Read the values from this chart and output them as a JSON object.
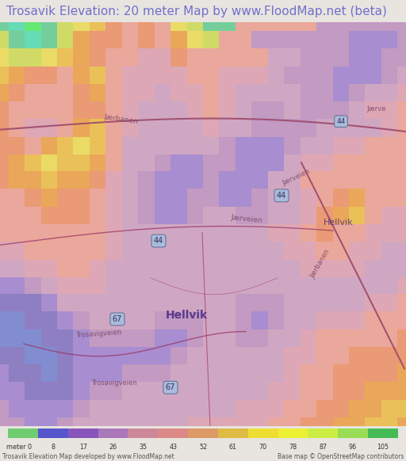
{
  "title": "Trosavik Elevation: 20 meter Map by www.FloodMap.net (beta)",
  "title_color": "#7070cc",
  "title_fontsize": 11,
  "bg_color": "#e8e4df",
  "footer_left": "Trosavik Elevation Map developed by www.FloodMap.net",
  "footer_right": "Base map © OpenStreetMap contributors",
  "colorbar_values": [
    0,
    8,
    17,
    26,
    35,
    43,
    52,
    61,
    70,
    78,
    87,
    96,
    105
  ],
  "colorbar_colors": [
    "#70cc70",
    "#5555cc",
    "#8855bb",
    "#aa77bb",
    "#cc8899",
    "#dd8888",
    "#dd9966",
    "#ddbb44",
    "#eedd33",
    "#eef033",
    "#ccee44",
    "#99dd55",
    "#44bb55"
  ],
  "map_seed": 7,
  "road_color": "#993366",
  "road_color2": "#884466",
  "label_color": "#774466",
  "place_color": "#553377",
  "sign_color": "#555588",
  "sign_bg": "#aabbdd",
  "map_bg": "#cc99bb"
}
